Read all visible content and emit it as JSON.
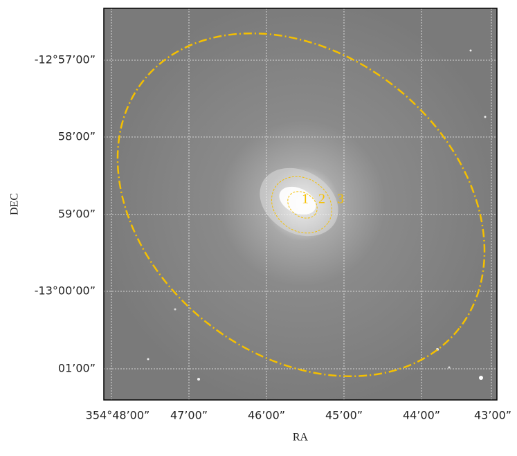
{
  "axes": {
    "xlabel": "RA",
    "ylabel": "DEC",
    "xticks": [
      "354°48’00”",
      "47’00”",
      "46’00”",
      "45’00”",
      "44’00”",
      "43’00”"
    ],
    "yticks": [
      "-12°57’00”",
      "58’00”",
      "59’00”",
      "-13°00’00”",
      "01’00”"
    ]
  },
  "annotations": [
    "1",
    "2",
    "3"
  ]
}
